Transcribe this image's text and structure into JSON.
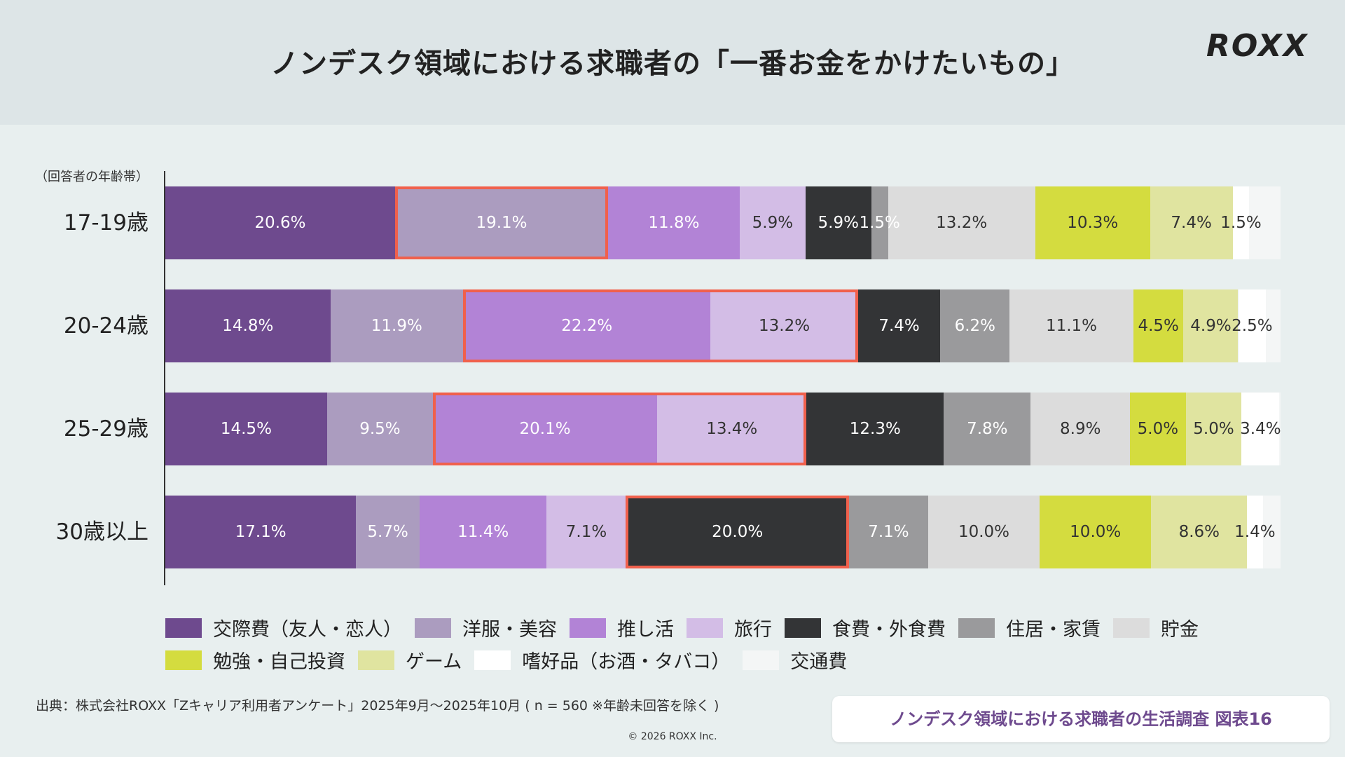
{
  "header": {
    "title": "ノンデスク領域における求職者の「一番お金をかけたいもの」",
    "logo": "ROXX"
  },
  "chart_data": {
    "type": "bar",
    "orientation": "horizontal-stacked-100",
    "title": "ノンデスク領域における求職者の「一番お金をかけたいもの」",
    "ylabel": "（回答者の年齢帯）",
    "categories": [
      "17-19歳",
      "20-24歳",
      "25-29歳",
      "30歳以上"
    ],
    "legend_position": "bottom",
    "series": [
      {
        "name": "交際費（友人・恋人）",
        "color": "#6e4a8e",
        "text": "#ffffff",
        "values": [
          20.6,
          14.8,
          14.5,
          17.1
        ],
        "labels": [
          "20.6%",
          "14.8%",
          "14.5%",
          "17.1%"
        ]
      },
      {
        "name": "洋服・美容",
        "color": "#ab9cbf",
        "text": "#ffffff",
        "values": [
          19.1,
          11.9,
          9.5,
          5.7
        ],
        "labels": [
          "19.1%",
          "11.9%",
          "9.5%",
          "5.7%"
        ]
      },
      {
        "name": "推し活",
        "color": "#b283d6",
        "text": "#ffffff",
        "values": [
          11.8,
          22.2,
          20.1,
          11.4
        ],
        "labels": [
          "11.8%",
          "22.2%",
          "20.1%",
          "11.4%"
        ]
      },
      {
        "name": "旅行",
        "color": "#d3bde6",
        "text": "#333333",
        "values": [
          5.9,
          13.2,
          13.4,
          7.1
        ],
        "labels": [
          "5.9%",
          "13.2%",
          "13.4%",
          "7.1%"
        ]
      },
      {
        "name": "食費・外食費",
        "color": "#333436",
        "text": "#ffffff",
        "values": [
          5.9,
          7.4,
          12.3,
          20.0
        ],
        "labels": [
          "5.9%",
          "7.4%",
          "12.3%",
          "20.0%"
        ]
      },
      {
        "name": "住居・家賃",
        "color": "#9a9a9c",
        "text": "#ffffff",
        "values": [
          1.5,
          6.2,
          7.8,
          7.1
        ],
        "labels": [
          "1.5%",
          "6.2%",
          "7.8%",
          "7.1%"
        ]
      },
      {
        "name": "貯金",
        "color": "#dcdcdc",
        "text": "#333333",
        "values": [
          13.2,
          11.1,
          8.9,
          10.0
        ],
        "labels": [
          "13.2%",
          "11.1%",
          "8.9%",
          "10.0%"
        ]
      },
      {
        "name": "勉強・自己投資",
        "color": "#d4dc3f",
        "text": "#333333",
        "values": [
          10.3,
          4.5,
          5.0,
          10.0
        ],
        "labels": [
          "10.3%",
          "4.5%",
          "5.0%",
          "10.0%"
        ]
      },
      {
        "name": "ゲーム",
        "color": "#e0e4a0",
        "text": "#333333",
        "values": [
          7.4,
          4.9,
          5.0,
          8.6
        ],
        "labels": [
          "7.4%",
          "4.9%",
          "5.0%",
          "8.6%"
        ]
      },
      {
        "name": "嗜好品（お酒・タバコ）",
        "color": "#ffffff",
        "text": "#333333",
        "values": [
          1.5,
          2.5,
          3.4,
          1.4
        ],
        "labels": [
          "1.5%",
          "2.5%",
          "3.4%",
          "1.4%"
        ]
      },
      {
        "name": "交通費",
        "color": "#f4f6f6",
        "text": "#333333",
        "values": [
          2.8,
          1.3,
          0.1,
          1.6
        ],
        "labels": [
          null,
          null,
          null,
          null
        ]
      }
    ],
    "highlights": [
      {
        "row": 0,
        "from": 1,
        "to": 1
      },
      {
        "row": 1,
        "from": 2,
        "to": 3
      },
      {
        "row": 2,
        "from": 2,
        "to": 3
      },
      {
        "row": 3,
        "from": 4,
        "to": 4
      }
    ],
    "highlight_color": "#f0604c"
  },
  "footer": {
    "source": "出典：株式会社ROXX「Zキャリア利用者アンケート」2025年9月〜2025年10月 ( n = 560 ※年齢未回答を除く )",
    "copyright": "© 2026 ROXX Inc.",
    "badge": "ノンデスク領域における求職者の生活調査 図表16"
  }
}
